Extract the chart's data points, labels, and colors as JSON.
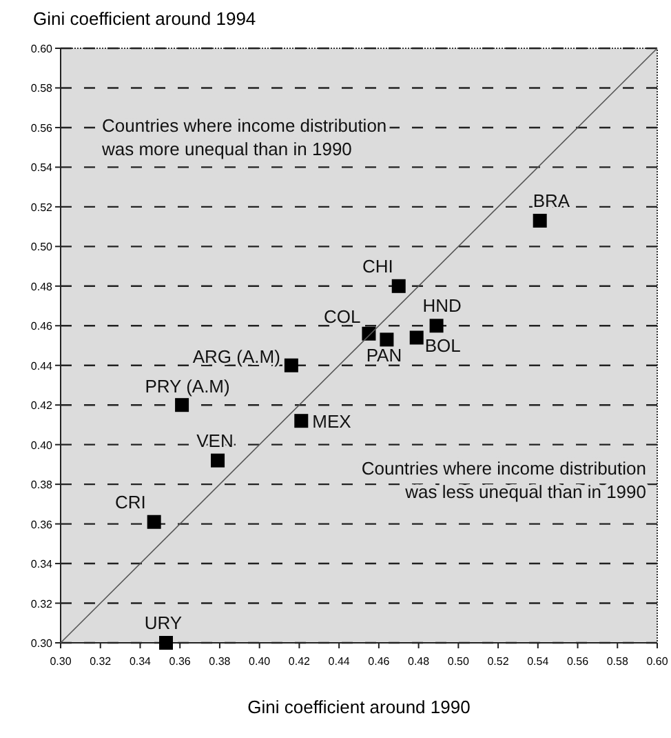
{
  "chart_data": {
    "type": "scatter",
    "ylabel": "Gini coefficient around 1994",
    "xlabel": "Gini coefficient around 1990",
    "xlim": [
      0.3,
      0.6
    ],
    "ylim": [
      0.3,
      0.6
    ],
    "xticks": [
      {
        "value": 0.3,
        "label": "0.30"
      },
      {
        "value": 0.32,
        "label": "0.32"
      },
      {
        "value": 0.34,
        "label": "0.34"
      },
      {
        "value": 0.36,
        "label": "0.36"
      },
      {
        "value": 0.38,
        "label": "0.38"
      },
      {
        "value": 0.4,
        "label": "0.40"
      },
      {
        "value": 0.42,
        "label": "0.42"
      },
      {
        "value": 0.44,
        "label": "0.44"
      },
      {
        "value": 0.46,
        "label": "0.46"
      },
      {
        "value": 0.48,
        "label": "0.48"
      },
      {
        "value": 0.5,
        "label": "0.50"
      },
      {
        "value": 0.52,
        "label": "0.52"
      },
      {
        "value": 0.54,
        "label": "0.54"
      },
      {
        "value": 0.56,
        "label": "0.56"
      },
      {
        "value": 0.58,
        "label": "0.58"
      },
      {
        "value": 0.6,
        "label": "0.60"
      }
    ],
    "yticks": [
      {
        "value": 0.3,
        "label": "0.30"
      },
      {
        "value": 0.32,
        "label": "0.32"
      },
      {
        "value": 0.34,
        "label": "0.34"
      },
      {
        "value": 0.36,
        "label": "0.36"
      },
      {
        "value": 0.38,
        "label": "0.38"
      },
      {
        "value": 0.4,
        "label": "0.40"
      },
      {
        "value": 0.42,
        "label": "0.42"
      },
      {
        "value": 0.44,
        "label": "0.44"
      },
      {
        "value": 0.46,
        "label": "0.46"
      },
      {
        "value": 0.48,
        "label": "0.48"
      },
      {
        "value": 0.5,
        "label": "0.50"
      },
      {
        "value": 0.52,
        "label": "0.52"
      },
      {
        "value": 0.54,
        "label": "0.54"
      },
      {
        "value": 0.56,
        "label": "0.56"
      },
      {
        "value": 0.58,
        "label": "0.58"
      },
      {
        "value": 0.6,
        "label": "0.60"
      }
    ],
    "grid": "y",
    "marker": "square",
    "annotations": [
      "Countries where income distribution was more unequal than in 1990",
      "Countries where income distribution was less unequal than in 1990"
    ],
    "series": [
      {
        "name": "BRA",
        "color": "#000000",
        "x": [
          0.541
        ],
        "values": [
          0.513
        ]
      },
      {
        "name": "CHI",
        "color": "#000000",
        "x": [
          0.47
        ],
        "values": [
          0.48
        ]
      },
      {
        "name": "COL",
        "color": "#000000",
        "x": [
          0.455
        ],
        "values": [
          0.456
        ]
      },
      {
        "name": "PAN",
        "color": "#000000",
        "x": [
          0.464
        ],
        "values": [
          0.453
        ]
      },
      {
        "name": "BOL",
        "color": "#000000",
        "x": [
          0.479
        ],
        "values": [
          0.454
        ]
      },
      {
        "name": "HND",
        "color": "#000000",
        "x": [
          0.489
        ],
        "values": [
          0.46
        ]
      },
      {
        "name": "ARG (A.M)",
        "color": "#000000",
        "x": [
          0.416
        ],
        "values": [
          0.44
        ]
      },
      {
        "name": "PRY (A.M)",
        "color": "#000000",
        "x": [
          0.361
        ],
        "values": [
          0.42
        ]
      },
      {
        "name": "MEX",
        "color": "#000000",
        "x": [
          0.421
        ],
        "values": [
          0.412
        ]
      },
      {
        "name": "VEN",
        "color": "#000000",
        "x": [
          0.379
        ],
        "values": [
          0.392
        ]
      },
      {
        "name": "CRI",
        "color": "#000000",
        "x": [
          0.347
        ],
        "values": [
          0.361
        ]
      },
      {
        "name": "URY",
        "color": "#000000",
        "x": [
          0.353
        ],
        "values": [
          0.3
        ]
      },
      {
        "type": "line",
        "color": "#555555",
        "line_style": "solid",
        "marker": "none",
        "x": [
          0.3,
          0.6
        ],
        "values": [
          0.3,
          0.6
        ]
      }
    ]
  }
}
